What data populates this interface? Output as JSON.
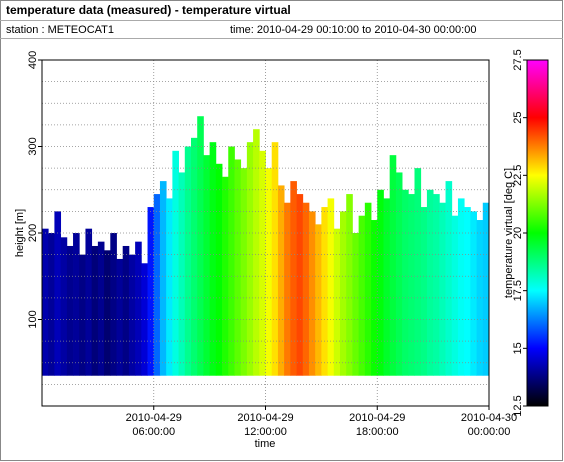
{
  "chart_data": {
    "type": "heatmap",
    "title": "temperature data (measured) - temperature virtual",
    "station": "station : METEOCAT1",
    "period": "time: 2010-04-29 00:10:00 to 2010-04-30 00:00:00",
    "x_label": "time",
    "y_label": "height [m]",
    "colorbar_label": "temperature virtual [deg C]",
    "xlim": [
      "2010-04-29 00:00:00",
      "2010-04-30 00:00:00"
    ],
    "xticks": [
      "2010-04-29 06:00:00",
      "2010-04-29 12:00:00",
      "2010-04-29 18:00:00",
      "2010-04-30 00:00:00"
    ],
    "ylim": [
      0,
      400
    ],
    "yticks": [
      100,
      200,
      300,
      400
    ],
    "yminor": [
      25,
      50,
      75,
      125,
      150,
      175,
      225,
      250,
      275,
      325,
      350,
      375
    ],
    "clim": [
      12.5,
      27.5
    ],
    "cticks": [
      12.5,
      15,
      17.5,
      20,
      22.5,
      25,
      27.5
    ],
    "colormap": [
      "#000000",
      "#0000ff",
      "#00ffff",
      "#00ff00",
      "#ffff00",
      "#ff0000",
      "#ff00ff"
    ],
    "grid": true,
    "bottom": 35,
    "x": [
      "2010-04-29 00:10:00",
      "2010-04-29 00:30:00",
      "2010-04-29 00:50:00",
      "2010-04-29 01:10:00",
      "2010-04-29 01:30:00",
      "2010-04-29 01:50:00",
      "2010-04-29 02:10:00",
      "2010-04-29 02:30:00",
      "2010-04-29 02:50:00",
      "2010-04-29 03:10:00",
      "2010-04-29 03:30:00",
      "2010-04-29 03:50:00",
      "2010-04-29 04:10:00",
      "2010-04-29 04:30:00",
      "2010-04-29 04:50:00",
      "2010-04-29 05:10:00",
      "2010-04-29 05:30:00",
      "2010-04-29 05:50:00",
      "2010-04-29 06:10:00",
      "2010-04-29 06:30:00",
      "2010-04-29 06:50:00",
      "2010-04-29 07:10:00",
      "2010-04-29 07:30:00",
      "2010-04-29 07:50:00",
      "2010-04-29 08:10:00",
      "2010-04-29 08:30:00",
      "2010-04-29 08:50:00",
      "2010-04-29 09:10:00",
      "2010-04-29 09:30:00",
      "2010-04-29 09:50:00",
      "2010-04-29 10:10:00",
      "2010-04-29 10:30:00",
      "2010-04-29 10:50:00",
      "2010-04-29 11:10:00",
      "2010-04-29 11:30:00",
      "2010-04-29 11:50:00",
      "2010-04-29 12:10:00",
      "2010-04-29 12:30:00",
      "2010-04-29 12:50:00",
      "2010-04-29 13:10:00",
      "2010-04-29 13:30:00",
      "2010-04-29 13:50:00",
      "2010-04-29 14:10:00",
      "2010-04-29 14:30:00",
      "2010-04-29 14:50:00",
      "2010-04-29 15:10:00",
      "2010-04-29 15:30:00",
      "2010-04-29 15:50:00",
      "2010-04-29 16:10:00",
      "2010-04-29 16:30:00",
      "2010-04-29 16:50:00",
      "2010-04-29 17:10:00",
      "2010-04-29 17:30:00",
      "2010-04-29 17:50:00",
      "2010-04-29 18:10:00",
      "2010-04-29 18:30:00",
      "2010-04-29 18:50:00",
      "2010-04-29 19:10:00",
      "2010-04-29 19:30:00",
      "2010-04-29 19:50:00",
      "2010-04-29 20:10:00",
      "2010-04-29 20:30:00",
      "2010-04-29 20:50:00",
      "2010-04-29 21:10:00",
      "2010-04-29 21:30:00",
      "2010-04-29 21:50:00",
      "2010-04-29 22:10:00",
      "2010-04-29 22:30:00",
      "2010-04-29 22:50:00",
      "2010-04-29 23:10:00",
      "2010-04-29 23:30:00",
      "2010-04-29 23:50:00"
    ],
    "top": [
      205,
      200,
      225,
      195,
      185,
      200,
      175,
      205,
      185,
      190,
      180,
      200,
      170,
      185,
      175,
      190,
      165,
      230,
      245,
      260,
      240,
      295,
      270,
      300,
      310,
      335,
      290,
      305,
      280,
      265,
      300,
      285,
      275,
      305,
      320,
      295,
      275,
      305,
      255,
      235,
      260,
      245,
      235,
      225,
      210,
      230,
      240,
      205,
      225,
      245,
      200,
      220,
      235,
      215,
      250,
      240,
      290,
      270,
      250,
      245,
      275,
      230,
      250,
      245,
      235,
      260,
      220,
      240,
      230,
      225,
      215,
      235
    ],
    "values": [
      14.2,
      14.0,
      14.3,
      14.1,
      13.9,
      14.0,
      13.8,
      14.0,
      13.7,
      13.9,
      13.6,
      13.8,
      14.0,
      13.8,
      14.1,
      14.3,
      14.6,
      15.2,
      16.0,
      16.8,
      17.3,
      17.8,
      18.2,
      18.6,
      18.9,
      19.2,
      19.5,
      19.8,
      20.0,
      20.3,
      20.6,
      20.9,
      21.2,
      21.5,
      21.8,
      22.1,
      22.4,
      22.8,
      23.3,
      23.8,
      24.1,
      24.3,
      24.0,
      23.6,
      23.2,
      22.8,
      22.4,
      22.0,
      21.6,
      21.3,
      21.0,
      20.7,
      20.4,
      20.1,
      19.9,
      19.6,
      19.4,
      19.2,
      19.0,
      18.9,
      18.8,
      18.7,
      18.5,
      18.4,
      18.2,
      18.0,
      17.8,
      17.6,
      17.5,
      17.3,
      17.1,
      17.0
    ]
  }
}
